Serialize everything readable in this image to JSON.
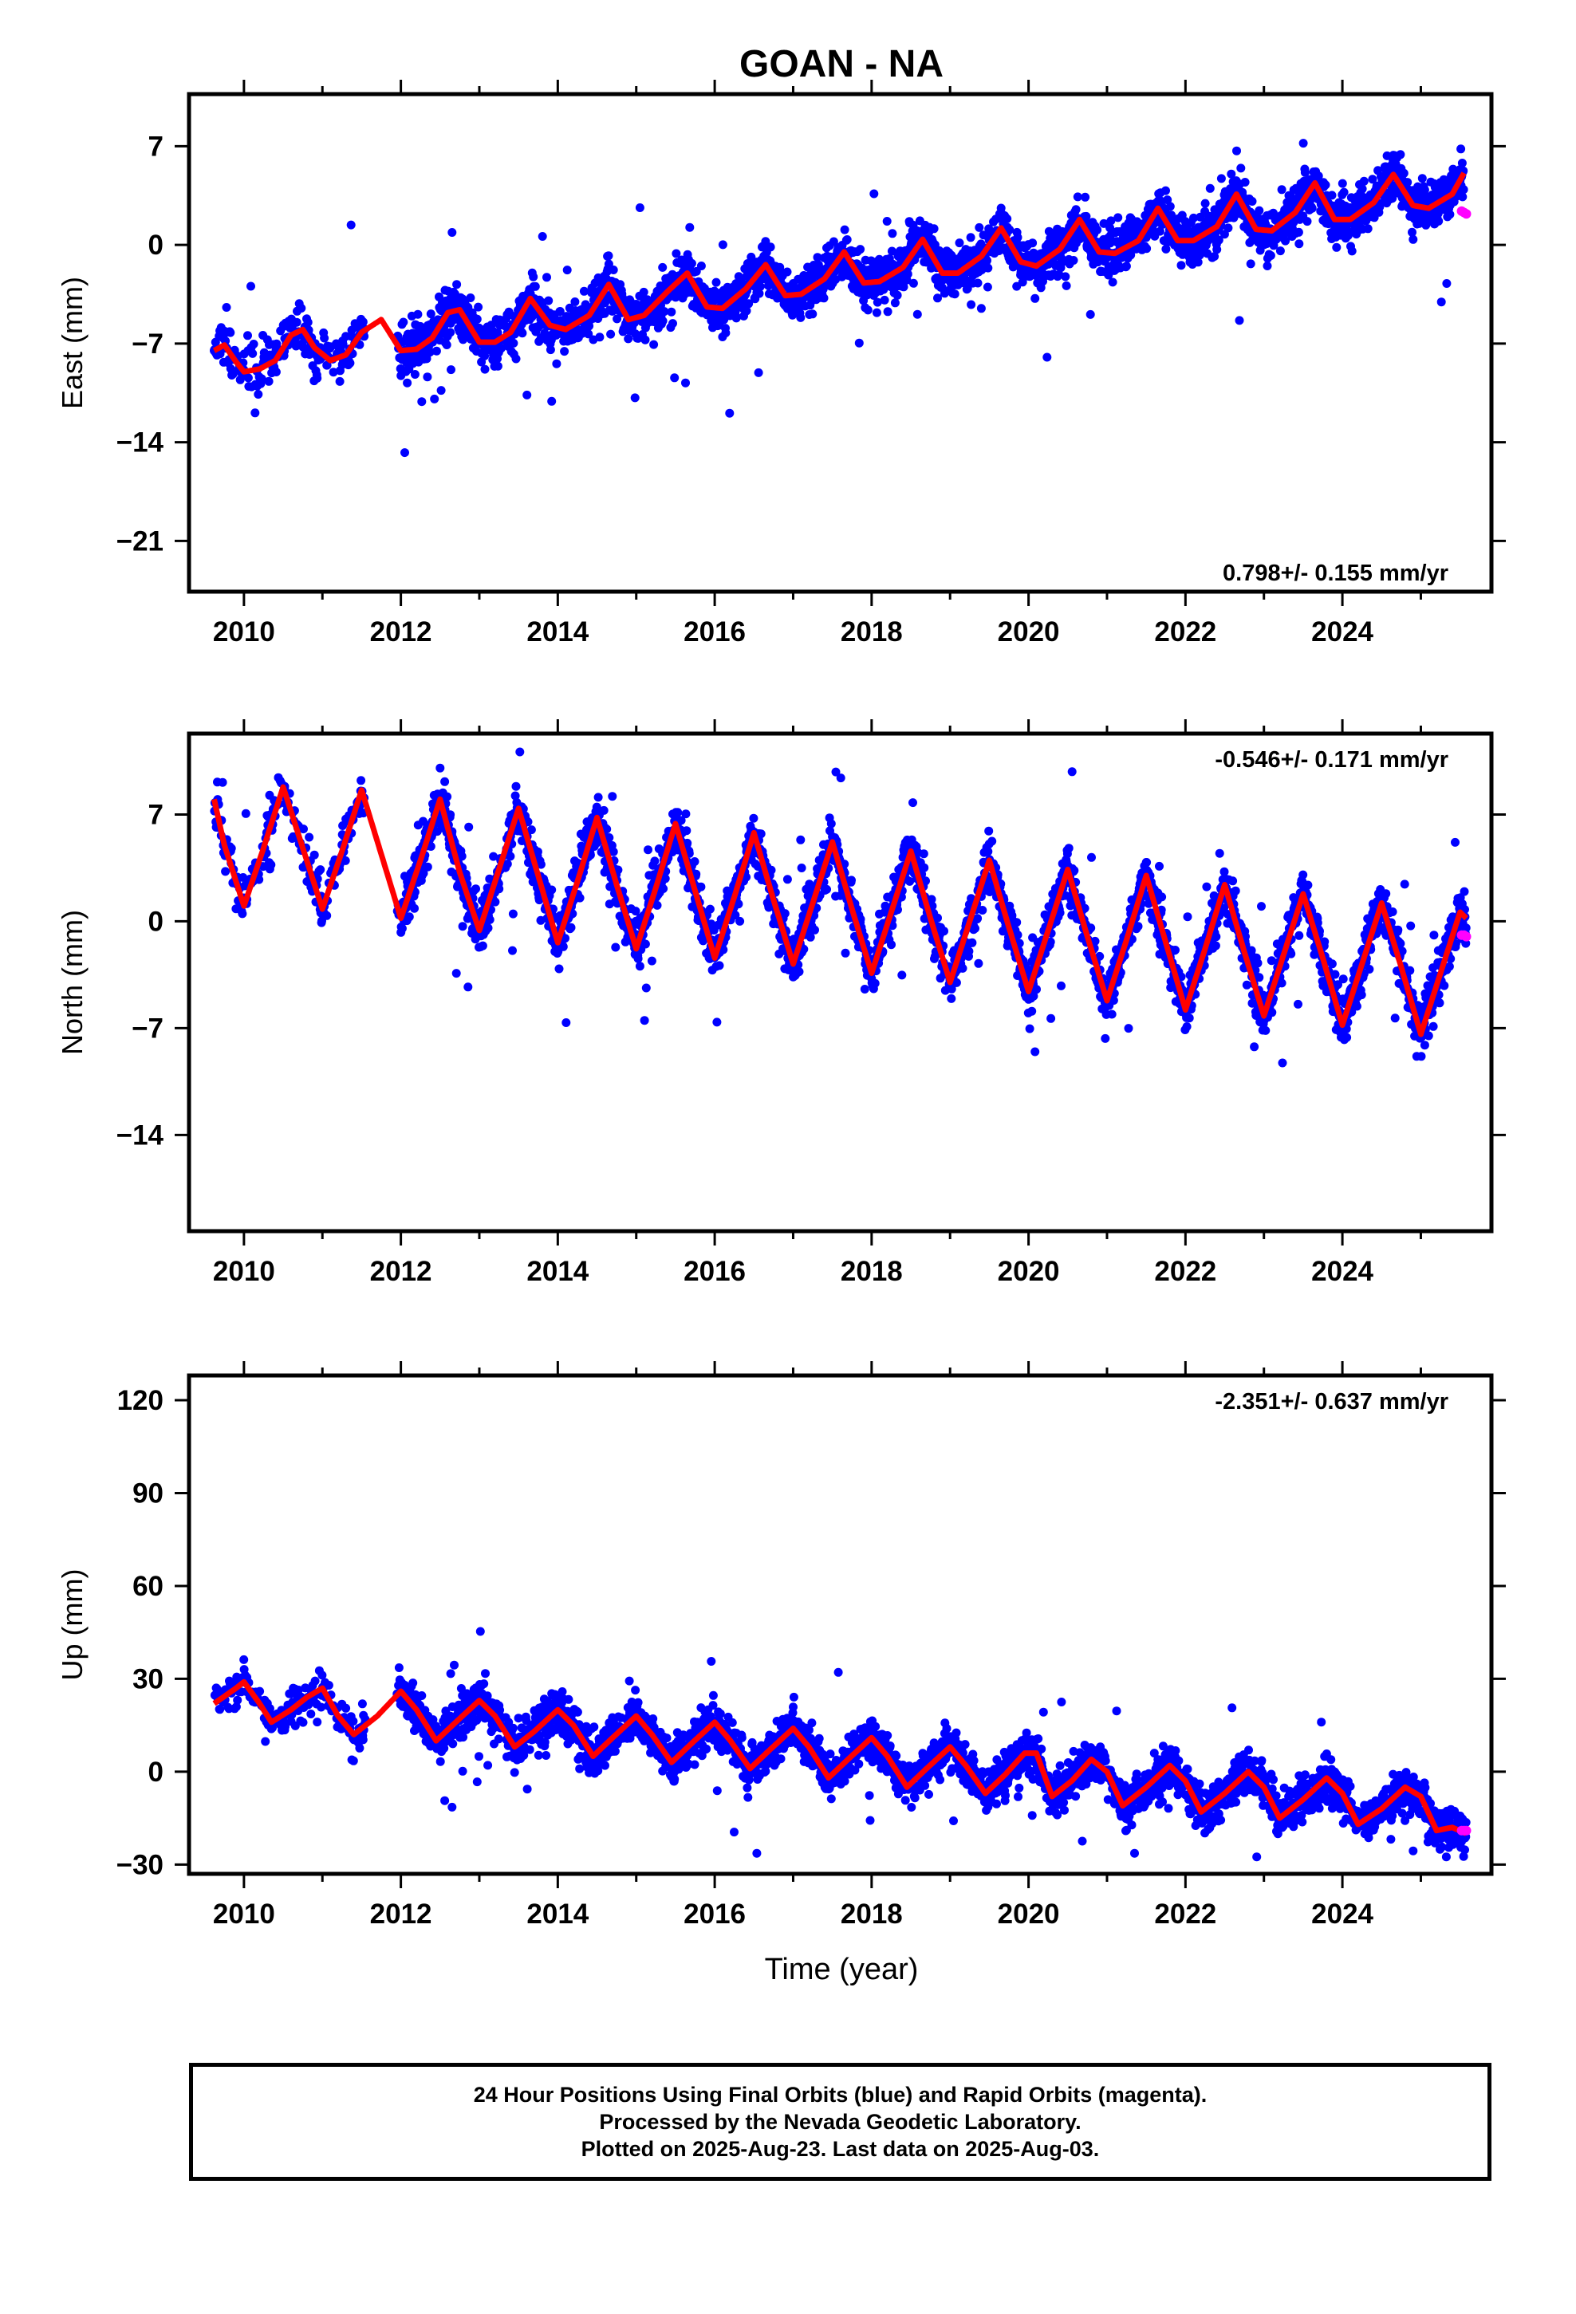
{
  "title": "GOAN - NA",
  "xlabel": "Time (year)",
  "footer": {
    "lines": [
      "24 Hour Positions Using Final Orbits (blue) and Rapid Orbits (magenta).",
      "Processed by the Nevada Geodetic Laboratory.",
      "Plotted on 2025-Aug-23. Last data on 2025-Aug-03."
    ]
  },
  "colors": {
    "final": "#0000ff",
    "rapid": "#ff00ff",
    "model": "#ff0000",
    "axis": "#000000"
  },
  "chart_data": [
    {
      "type": "scatter",
      "ylabel": "East (mm)",
      "rate": "0.798+/- 0.155 mm/yr",
      "rate_position": "bottom-right",
      "xlim": [
        2009.3,
        2025.9
      ],
      "ylim": [
        -24.6,
        10.7
      ],
      "xticks": [
        2010,
        2012,
        2014,
        2016,
        2018,
        2020,
        2022,
        2024
      ],
      "yticks": [
        7,
        0,
        -7,
        -14,
        -21
      ],
      "grid": false,
      "series": [
        {
          "x": [
            2009.62,
            2009.75,
            2009.9,
            2010.0,
            2010.2,
            2010.4,
            2010.6,
            2010.75,
            2010.9,
            2011.1,
            2011.3,
            2011.5,
            2011.75,
            2012.0,
            2012.2,
            2012.4,
            2012.6,
            2012.75,
            2013.0,
            2013.2,
            2013.4,
            2013.65,
            2013.9,
            2014.1,
            2014.4,
            2014.65,
            2014.9,
            2015.1,
            2015.4,
            2015.65,
            2015.9,
            2016.1,
            2016.4,
            2016.65,
            2016.9,
            2017.1,
            2017.4,
            2017.65,
            2017.9,
            2018.1,
            2018.4,
            2018.65,
            2018.9,
            2019.1,
            2019.4,
            2019.65,
            2019.9,
            2020.1,
            2020.4,
            2020.65,
            2020.9,
            2021.1,
            2021.4,
            2021.65,
            2021.9,
            2022.1,
            2022.4,
            2022.65,
            2022.9,
            2023.1,
            2023.4,
            2023.65,
            2023.9,
            2024.1,
            2024.4,
            2024.65,
            2024.9,
            2025.1,
            2025.4,
            2025.55
          ],
          "y": [
            -7.5,
            -7.1,
            -8.3,
            -9.0,
            -8.8,
            -8.2,
            -6.4,
            -6.0,
            -7.3,
            -8.2,
            -7.8,
            -6.2,
            -5.3,
            -7.5,
            -7.4,
            -6.6,
            -4.8,
            -4.6,
            -6.9,
            -6.9,
            -6.2,
            -3.8,
            -5.7,
            -6.0,
            -5.0,
            -2.8,
            -5.3,
            -5.0,
            -3.3,
            -2.0,
            -4.4,
            -4.5,
            -3.1,
            -1.4,
            -3.6,
            -3.5,
            -2.4,
            -0.5,
            -2.7,
            -2.6,
            -1.6,
            0.4,
            -2.0,
            -2.0,
            -0.8,
            1.2,
            -1.2,
            -1.5,
            -0.3,
            1.8,
            -0.5,
            -0.6,
            0.3,
            2.6,
            0.3,
            0.3,
            1.3,
            3.6,
            1.1,
            1.0,
            2.3,
            4.4,
            1.8,
            1.8,
            3.0,
            5.0,
            2.8,
            2.6,
            3.6,
            5.1
          ]
        },
        {
          "name": "rapid",
          "x": [
            2025.52,
            2025.55,
            2025.58
          ],
          "y": [
            2.4,
            2.3,
            2.2
          ]
        }
      ]
    },
    {
      "type": "scatter",
      "ylabel": "North (mm)",
      "rate": "-0.546+/- 0.171 mm/yr",
      "rate_position": "top-right",
      "xlim": [
        2009.3,
        2025.9
      ],
      "ylim": [
        -20.3,
        12.3
      ],
      "xticks": [
        2010,
        2012,
        2014,
        2016,
        2018,
        2020,
        2022,
        2024
      ],
      "yticks": [
        7,
        0,
        -7,
        -14
      ],
      "grid": false,
      "series": [
        {
          "x": [
            2009.62,
            2009.75,
            2010.0,
            2010.25,
            2010.5,
            2010.75,
            2011.0,
            2011.25,
            2011.5,
            2011.75,
            2012.0,
            2012.25,
            2012.5,
            2012.75,
            2013.0,
            2013.25,
            2013.5,
            2013.75,
            2014.0,
            2014.25,
            2014.5,
            2014.75,
            2015.0,
            2015.25,
            2015.5,
            2015.75,
            2016.0,
            2016.25,
            2016.5,
            2016.75,
            2017.0,
            2017.25,
            2017.5,
            2017.75,
            2018.0,
            2018.25,
            2018.5,
            2018.75,
            2019.0,
            2019.25,
            2019.5,
            2019.75,
            2020.0,
            2020.25,
            2020.5,
            2020.75,
            2021.0,
            2021.25,
            2021.5,
            2021.75,
            2022.0,
            2022.25,
            2022.5,
            2022.75,
            2023.0,
            2023.25,
            2023.5,
            2023.75,
            2024.0,
            2024.25,
            2024.5,
            2024.75,
            2025.0,
            2025.25,
            2025.5,
            2025.58
          ],
          "y": [
            8.0,
            5.0,
            1.0,
            4.8,
            8.8,
            4.8,
            0.8,
            4.6,
            8.6,
            4.4,
            0.2,
            4.0,
            8.0,
            3.2,
            -0.6,
            3.4,
            7.4,
            3.0,
            -1.4,
            2.6,
            6.8,
            2.4,
            -1.8,
            2.2,
            6.4,
            2.0,
            -2.4,
            1.6,
            5.8,
            1.4,
            -2.8,
            1.2,
            5.2,
            0.8,
            -3.4,
            0.6,
            4.6,
            0.2,
            -4.0,
            0.0,
            4.0,
            -0.4,
            -4.6,
            -0.6,
            3.4,
            -1.0,
            -5.2,
            -1.2,
            3.0,
            -1.4,
            -5.8,
            -1.8,
            2.4,
            -2.0,
            -6.2,
            -2.2,
            1.8,
            -2.4,
            -6.8,
            -2.8,
            1.2,
            -3.0,
            -7.4,
            -3.4,
            0.6,
            0.2
          ]
        },
        {
          "name": "rapid",
          "x": [
            2025.52,
            2025.55,
            2025.58
          ],
          "y": [
            -0.9,
            -0.9,
            -1.0
          ]
        }
      ]
    },
    {
      "type": "scatter",
      "ylabel": "Up (mm)",
      "rate": "-2.351+/- 0.637 mm/yr",
      "rate_position": "top-right",
      "xlim": [
        2009.3,
        2025.9
      ],
      "ylim": [
        -33.0,
        128.0
      ],
      "xticks": [
        2010,
        2012,
        2014,
        2016,
        2018,
        2020,
        2022,
        2024
      ],
      "yticks": [
        120,
        90,
        60,
        30,
        0,
        -30
      ],
      "grid": false,
      "series": [
        {
          "x": [
            2009.62,
            2009.9,
            2010.0,
            2010.2,
            2010.35,
            2010.6,
            2010.8,
            2011.0,
            2011.2,
            2011.4,
            2011.7,
            2012.0,
            2012.2,
            2012.45,
            2012.7,
            2013.0,
            2013.2,
            2013.45,
            2013.7,
            2014.0,
            2014.2,
            2014.45,
            2014.7,
            2015.0,
            2015.2,
            2015.45,
            2015.7,
            2016.0,
            2016.2,
            2016.45,
            2016.7,
            2017.0,
            2017.2,
            2017.45,
            2017.7,
            2018.0,
            2018.2,
            2018.45,
            2018.7,
            2019.0,
            2019.2,
            2019.45,
            2019.7,
            2019.95,
            2020.1,
            2020.3,
            2020.55,
            2020.8,
            2021.0,
            2021.2,
            2021.5,
            2021.8,
            2022.0,
            2022.2,
            2022.5,
            2022.8,
            2023.0,
            2023.2,
            2023.5,
            2023.8,
            2024.0,
            2024.2,
            2024.5,
            2024.8,
            2025.0,
            2025.2,
            2025.4,
            2025.58
          ],
          "y": [
            22,
            27,
            29,
            22,
            16,
            20,
            24,
            27,
            18,
            12,
            18,
            26,
            20,
            10,
            16,
            23,
            18,
            8,
            13,
            20,
            15,
            5,
            11,
            18,
            12,
            3,
            9,
            16,
            10,
            1,
            7,
            14,
            8,
            -2,
            4,
            11,
            5,
            -5,
            1,
            8,
            2,
            -7,
            -1,
            6,
            6,
            -8,
            -3,
            4,
            0,
            -11,
            -5,
            2,
            -3,
            -13,
            -7,
            0,
            -5,
            -15,
            -9,
            -2,
            -7,
            -17,
            -12,
            -5,
            -8,
            -19,
            -18,
            -20
          ]
        },
        {
          "name": "rapid",
          "x": [
            2025.52,
            2025.55,
            2025.58
          ],
          "y": [
            -19,
            -19,
            -19
          ]
        }
      ]
    }
  ]
}
